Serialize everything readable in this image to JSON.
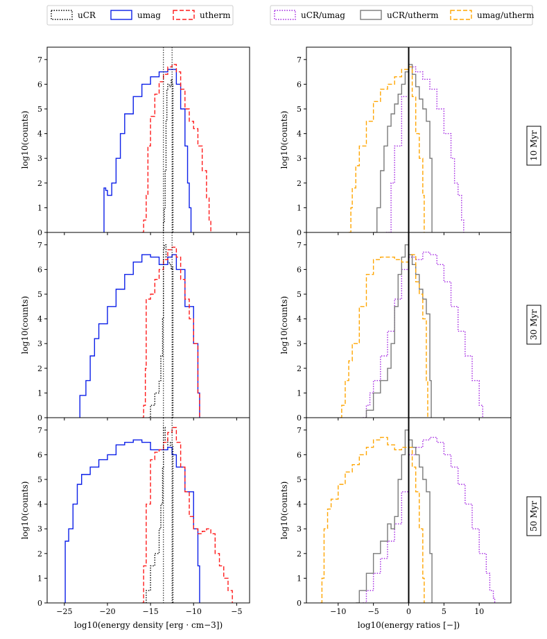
{
  "legends": {
    "left": [
      {
        "label": "uCR",
        "color": "#000000",
        "dash": "1.5,2"
      },
      {
        "label": "umag",
        "color": "#0b1fe8",
        "dash": ""
      },
      {
        "label": "utherm",
        "color": "#ff1a1a",
        "dash": "6,3"
      }
    ],
    "right": [
      {
        "label": "uCR/umag",
        "color": "#a020e0",
        "dash": "1.5,2"
      },
      {
        "label": "uCR/utherm",
        "color": "#7a7a7a",
        "dash": ""
      },
      {
        "label": "umag/utherm",
        "color": "#ffa500",
        "dash": "6,3"
      }
    ]
  },
  "time_labels": [
    "10 Myr",
    "30 Myr",
    "50 Myr"
  ],
  "chart_data": [
    {
      "type": "line",
      "panel": "energy-density-10myr",
      "xlabel": "",
      "ylabel": "log10(counts)",
      "xlim": [
        -27,
        -3.5
      ],
      "ylim": [
        0,
        7.5
      ],
      "yticks": [
        0,
        1,
        2,
        3,
        4,
        5,
        6,
        7
      ],
      "xticks": [
        -25,
        -20,
        -15,
        -10,
        -5
      ],
      "show_xticklabels": false,
      "vlines": [
        -13.5,
        -12.5
      ],
      "series": [
        {
          "name": "uCR",
          "color": "#000000",
          "dash": "1.5,2",
          "x": [
            -13.6,
            -13.5,
            -13.4,
            -13.3,
            -13.2,
            -13.1,
            -13.0,
            -12.8,
            -12.6,
            -12.5,
            -12.4
          ],
          "y": [
            0,
            0.4,
            1.0,
            2.5,
            4.5,
            5.8,
            6.0,
            5.9,
            6.2,
            6.0,
            0
          ]
        },
        {
          "name": "umag",
          "color": "#0b1fe8",
          "dash": "",
          "x": [
            -20.4,
            -20.2,
            -20,
            -19.5,
            -19,
            -18.5,
            -18,
            -17,
            -16,
            -15,
            -14,
            -13,
            -12.5,
            -12,
            -11.5,
            -11,
            -10.7,
            -10.5,
            -10.3
          ],
          "y": [
            1.8,
            1.7,
            1.5,
            2.0,
            3.0,
            4.0,
            4.8,
            5.5,
            6.0,
            6.3,
            6.5,
            6.6,
            6.6,
            6.0,
            5.0,
            3.5,
            2.0,
            1.0,
            0
          ]
        },
        {
          "name": "utherm",
          "color": "#ff1a1a",
          "dash": "6,3",
          "x": [
            -16,
            -15.8,
            -15.5,
            -15.3,
            -15,
            -14.5,
            -14,
            -13.5,
            -13,
            -12.5,
            -12,
            -11.5,
            -11,
            -10.5,
            -10,
            -9.5,
            -9,
            -8.5,
            -8.2,
            -8.0
          ],
          "y": [
            0,
            0.5,
            1.5,
            3.5,
            4.7,
            5.6,
            6.1,
            6.4,
            6.7,
            6.8,
            6.5,
            5.8,
            5.0,
            4.5,
            4.2,
            3.5,
            2.5,
            1.4,
            0.5,
            0
          ]
        }
      ]
    },
    {
      "type": "line",
      "panel": "energy-ratios-10myr",
      "xlabel": "",
      "ylabel": "log10(counts)",
      "xlim": [
        -14.5,
        14.5
      ],
      "ylim": [
        0,
        7.5
      ],
      "yticks": [
        0,
        1,
        2,
        3,
        4,
        5,
        6,
        7
      ],
      "xticks": [
        -10,
        -5,
        0,
        5,
        10
      ],
      "show_xticklabels": false,
      "vlines": [
        0
      ],
      "series": [
        {
          "name": "uCR/umag",
          "color": "#a020e0",
          "dash": "1.5,2",
          "x": [
            -3.2,
            -2.5,
            -2,
            -1,
            0,
            1,
            2,
            3,
            4,
            5,
            6,
            6.5,
            7,
            7.5,
            7.8
          ],
          "y": [
            0,
            2.0,
            3.5,
            5.5,
            6.7,
            6.5,
            6.2,
            5.8,
            5.0,
            4.0,
            3.0,
            2.0,
            1.5,
            0.5,
            0
          ]
        },
        {
          "name": "uCR/utherm",
          "color": "#7a7a7a",
          "dash": "",
          "x": [
            -5,
            -4.5,
            -4,
            -3.5,
            -3,
            -2.5,
            -2,
            -1.5,
            -1,
            -0.5,
            0,
            0.5,
            1,
            1.5,
            2,
            2.5,
            3,
            3.3
          ],
          "y": [
            0,
            1.0,
            2.5,
            3.5,
            4.3,
            4.8,
            5.2,
            5.6,
            6.0,
            6.5,
            6.8,
            6.4,
            5.9,
            5.4,
            5.0,
            4.5,
            3.0,
            0
          ]
        },
        {
          "name": "umag/utherm",
          "color": "#ffa500",
          "dash": "6,3",
          "x": [
            -8.5,
            -8.2,
            -8,
            -7.5,
            -7,
            -6,
            -5,
            -4,
            -3,
            -2,
            -1,
            0,
            0.5,
            1,
            1.5,
            2,
            2.2
          ],
          "y": [
            0,
            1.0,
            1.8,
            2.7,
            3.5,
            4.5,
            5.3,
            5.8,
            6.0,
            6.3,
            6.6,
            6.7,
            5.5,
            4.0,
            3.0,
            1.5,
            0
          ]
        }
      ]
    },
    {
      "type": "line",
      "panel": "energy-density-30myr",
      "xlabel": "",
      "ylabel": "log10(counts)",
      "xlim": [
        -27,
        -3.5
      ],
      "ylim": [
        0,
        7.5
      ],
      "yticks": [
        0,
        1,
        2,
        3,
        4,
        5,
        6,
        7
      ],
      "xticks": [
        -25,
        -20,
        -15,
        -10,
        -5
      ],
      "show_xticklabels": false,
      "vlines": [
        -13.5,
        -12.5
      ],
      "series": [
        {
          "name": "uCR",
          "color": "#000000",
          "dash": "1.5,2",
          "x": [
            -15.2,
            -15,
            -14.5,
            -14,
            -13.8,
            -13.6,
            -13.5,
            -13.4,
            -13.2,
            -13,
            -12.8,
            -12.6,
            -12.5,
            -12.4
          ],
          "y": [
            0,
            0.5,
            1.0,
            1.5,
            2.5,
            4.0,
            6.8,
            7.0,
            6.5,
            6.3,
            6.2,
            6.0,
            6.1,
            0
          ]
        },
        {
          "name": "umag",
          "color": "#0b1fe8",
          "dash": "",
          "x": [
            -23.2,
            -23,
            -22.5,
            -22,
            -21.5,
            -21,
            -20,
            -19,
            -18,
            -17,
            -16,
            -15,
            -14,
            -13,
            -12.5,
            -12,
            -11,
            -10,
            -9.5,
            -9.3
          ],
          "y": [
            0.9,
            0.9,
            1.5,
            2.5,
            3.2,
            3.8,
            4.5,
            5.2,
            5.8,
            6.3,
            6.6,
            6.5,
            6.2,
            6.5,
            6.6,
            6.0,
            4.5,
            3.0,
            1.0,
            0
          ]
        },
        {
          "name": "utherm",
          "color": "#ff1a1a",
          "dash": "6,3",
          "x": [
            -16,
            -15.8,
            -15.6,
            -15.5,
            -15,
            -14.5,
            -14,
            -13.5,
            -13,
            -12.5,
            -12,
            -11.5,
            -11,
            -10.5,
            -10,
            -9.5,
            -9.3
          ],
          "y": [
            0,
            0.5,
            2.0,
            4.8,
            5.0,
            5.6,
            6.0,
            6.4,
            6.8,
            6.9,
            6.5,
            5.6,
            4.8,
            4.0,
            3.0,
            1.0,
            0
          ]
        }
      ]
    },
    {
      "type": "line",
      "panel": "energy-ratios-30myr",
      "xlabel": "",
      "ylabel": "log10(counts)",
      "xlim": [
        -14.5,
        14.5
      ],
      "ylim": [
        0,
        7.5
      ],
      "yticks": [
        0,
        1,
        2,
        3,
        4,
        5,
        6,
        7
      ],
      "xticks": [
        -10,
        -5,
        0,
        5,
        10
      ],
      "show_xticklabels": false,
      "vlines": [
        0
      ],
      "series": [
        {
          "name": "uCR/umag",
          "color": "#a020e0",
          "dash": "1.5,2",
          "x": [
            -6.5,
            -6,
            -5.5,
            -5,
            -4,
            -3,
            -2,
            -1,
            0,
            1,
            2,
            3,
            4,
            5,
            6,
            7,
            8,
            9,
            10,
            10.5
          ],
          "y": [
            0,
            0.5,
            1.0,
            1.5,
            2.5,
            3.5,
            4.8,
            6.0,
            6.5,
            6.4,
            6.7,
            6.6,
            6.2,
            5.5,
            4.5,
            3.5,
            2.5,
            1.5,
            0.5,
            0
          ]
        },
        {
          "name": "uCR/utherm",
          "color": "#7a7a7a",
          "dash": "",
          "x": [
            -6.2,
            -6,
            -5,
            -4,
            -3,
            -2.5,
            -2,
            -1.5,
            -1,
            -0.5,
            0,
            0.5,
            1,
            1.5,
            2,
            2.5,
            3,
            3.2
          ],
          "y": [
            0,
            0.3,
            1.0,
            1.5,
            2.0,
            3.0,
            4.5,
            5.8,
            6.5,
            7.0,
            6.6,
            6.2,
            5.8,
            5.2,
            4.8,
            4.2,
            1.5,
            0
          ]
        },
        {
          "name": "umag/utherm",
          "color": "#ffa500",
          "dash": "6,3",
          "x": [
            -9.7,
            -9.5,
            -9,
            -8.5,
            -8,
            -7,
            -6,
            -5,
            -4,
            -3,
            -2,
            -1,
            0,
            1,
            1.5,
            2,
            2.5,
            2.7
          ],
          "y": [
            0,
            0.5,
            1.5,
            2.3,
            3.0,
            4.5,
            5.8,
            6.4,
            6.5,
            6.5,
            6.4,
            6.3,
            6.6,
            5.5,
            5.0,
            4.0,
            1.5,
            0
          ]
        }
      ]
    },
    {
      "type": "line",
      "panel": "energy-density-50myr",
      "xlabel": "log10(energy density [erg · cm−3])",
      "ylabel": "log10(counts)",
      "xlim": [
        -27,
        -3.5
      ],
      "ylim": [
        0,
        7.5
      ],
      "yticks": [
        0,
        1,
        2,
        3,
        4,
        5,
        6,
        7
      ],
      "xticks": [
        -25,
        -20,
        -15,
        -10,
        -5
      ],
      "xticklabels": [
        "−25",
        "−20",
        "−15",
        "−10",
        "−5"
      ],
      "show_xticklabels": true,
      "vlines": [
        -13.5,
        -12.5
      ],
      "series": [
        {
          "name": "uCR",
          "color": "#000000",
          "dash": "1.5,2",
          "x": [
            -15.8,
            -15.5,
            -15,
            -14.5,
            -14,
            -13.8,
            -13.6,
            -13.5,
            -13.3,
            -13,
            -12.7,
            -12.5,
            -12.4
          ],
          "y": [
            0,
            0.5,
            1.5,
            2.0,
            3.0,
            4.0,
            5.5,
            7.1,
            6.6,
            6.3,
            6.5,
            6.4,
            0
          ]
        },
        {
          "name": "umag",
          "color": "#0b1fe8",
          "dash": "",
          "x": [
            -25,
            -24.9,
            -24.5,
            -24,
            -23.5,
            -23,
            -22,
            -21,
            -20,
            -19,
            -18,
            -17,
            -16,
            -15,
            -14,
            -13,
            -12.5,
            -12,
            -11,
            -10,
            -9.5,
            -9.3
          ],
          "y": [
            0,
            2.5,
            3.0,
            4.0,
            4.8,
            5.2,
            5.5,
            5.8,
            6.0,
            6.4,
            6.5,
            6.6,
            6.5,
            6.2,
            6.2,
            6.3,
            6.0,
            5.5,
            4.5,
            3.0,
            1.5,
            0
          ]
        },
        {
          "name": "utherm",
          "color": "#ff1a1a",
          "dash": "6,3",
          "x": [
            -16,
            -15.8,
            -15.5,
            -15,
            -14.5,
            -14,
            -13.5,
            -13,
            -12.5,
            -12,
            -11.5,
            -11,
            -10.5,
            -10,
            -9.5,
            -9,
            -8.5,
            -8,
            -7.5,
            -7,
            -6.5,
            -6,
            -5.5
          ],
          "y": [
            0,
            1.5,
            4.0,
            5.8,
            6.1,
            6.2,
            6.5,
            6.9,
            7.1,
            6.5,
            5.5,
            4.5,
            3.5,
            3.0,
            2.8,
            2.9,
            3.0,
            2.8,
            2.0,
            1.5,
            1.0,
            0.5,
            0
          ]
        }
      ]
    },
    {
      "type": "line",
      "panel": "energy-ratios-50myr",
      "xlabel": "log10(energy ratios [−])",
      "ylabel": "log10(counts)",
      "xlim": [
        -14.5,
        14.5
      ],
      "ylim": [
        0,
        7.5
      ],
      "yticks": [
        0,
        1,
        2,
        3,
        4,
        5,
        6,
        7
      ],
      "xticks": [
        -10,
        -5,
        0,
        5,
        10
      ],
      "xticklabels": [
        "−10",
        "−5",
        "0",
        "5",
        "10"
      ],
      "show_xticklabels": true,
      "vlines": [
        0
      ],
      "series": [
        {
          "name": "uCR/umag",
          "color": "#a020e0",
          "dash": "1.5,2",
          "x": [
            -6.5,
            -6,
            -5,
            -4,
            -3,
            -2,
            -1,
            0,
            1,
            2,
            3,
            4,
            5,
            6,
            7,
            8,
            9,
            10,
            11,
            11.5,
            12,
            12.2
          ],
          "y": [
            0,
            0.5,
            1.2,
            1.8,
            2.5,
            3.2,
            4.5,
            6.0,
            6.3,
            6.6,
            6.7,
            6.5,
            6.0,
            5.5,
            4.8,
            4.0,
            3.0,
            2.0,
            1.2,
            0.5,
            0.2,
            0
          ]
        },
        {
          "name": "uCR/utherm",
          "color": "#7a7a7a",
          "dash": "",
          "x": [
            -7.5,
            -7,
            -6,
            -5,
            -4,
            -3,
            -2.5,
            -2,
            -1.5,
            -1,
            -0.5,
            0,
            0.5,
            1,
            1.5,
            2,
            2.5,
            3,
            3.3
          ],
          "y": [
            0,
            0.5,
            1.2,
            2.0,
            2.5,
            3.2,
            3.0,
            3.5,
            5.0,
            6.0,
            7.0,
            6.6,
            6.3,
            6.0,
            5.5,
            5.0,
            4.5,
            2.0,
            0
          ]
        },
        {
          "name": "umag/utherm",
          "color": "#ffa500",
          "dash": "6,3",
          "x": [
            -12.5,
            -12.3,
            -12,
            -11.5,
            -11,
            -10,
            -9,
            -8,
            -7,
            -6,
            -5,
            -4,
            -3,
            -2,
            -1,
            0,
            0.5,
            1,
            1.5,
            2,
            2.2
          ],
          "y": [
            0,
            1.0,
            3.0,
            3.8,
            4.2,
            4.8,
            5.3,
            5.6,
            6.0,
            6.3,
            6.6,
            6.7,
            6.4,
            6.2,
            6.3,
            6.3,
            5.5,
            4.5,
            3.0,
            1.0,
            0
          ]
        }
      ]
    }
  ]
}
